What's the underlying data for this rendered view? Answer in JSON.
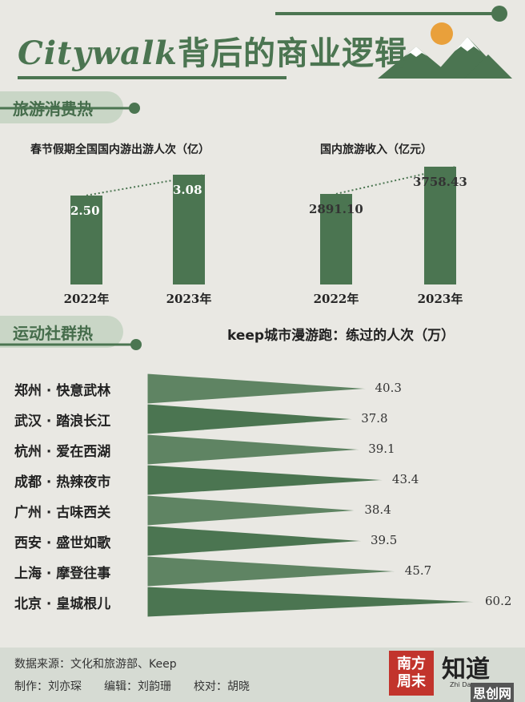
{
  "header": {
    "title_latin": "Citywalk",
    "title_cn": "背后的商业逻辑"
  },
  "tourism": {
    "section_title": "旅游消费热",
    "left_chart": {
      "caption": "春节假期全国国内游出游人次（亿）"
    },
    "right_chart": {
      "caption": "国内旅游收入（亿元）"
    }
  },
  "community": {
    "section_title": "运动社群热",
    "chart_caption": "keep城市漫游跑：练过的人次（万）"
  },
  "chart_data": [
    {
      "type": "bar",
      "title": "春节假期全国国内游出游人次（亿）",
      "categories": [
        "2022年",
        "2023年"
      ],
      "values": [
        2.5,
        3.08
      ],
      "value_labels": [
        "2.50",
        "3.08"
      ]
    },
    {
      "type": "bar",
      "title": "国内旅游收入（亿元）",
      "categories": [
        "2022年",
        "2023年"
      ],
      "values": [
        2891.1,
        3758.43
      ],
      "value_labels": [
        "2891.10",
        "3758.43"
      ]
    },
    {
      "type": "bar",
      "orientation": "horizontal",
      "title": "keep城市漫游跑：练过的人次（万）",
      "categories": [
        "郑州 · 快意武林",
        "武汉 · 踏浪长江",
        "杭州 · 爱在西湖",
        "成都 · 热辣夜市",
        "广州 · 古味西关",
        "西安 · 盛世如歌",
        "上海 · 摩登往事",
        "北京 · 皇城根儿"
      ],
      "values": [
        40.3,
        37.8,
        39.1,
        43.4,
        38.4,
        39.5,
        45.7,
        60.2
      ],
      "value_labels": [
        "40.3",
        "37.8",
        "39.1",
        "43.4",
        "38.4",
        "39.5",
        "45.7",
        "60.2"
      ]
    }
  ],
  "footer": {
    "source": "数据来源：文化和旅游部、Keep",
    "credits": "制作：刘亦琛　　编辑：刘韵珊　　校对：胡晓",
    "logo_text": "南方周末",
    "logo2_text": "知道",
    "logo2_sub": "Zhi Dao",
    "watermark": "思创网"
  },
  "colors": {
    "background": "#e9e8e3",
    "accent_green": "#4b7551",
    "tab_green": "#c9d6c6",
    "sun": "#e9a03b",
    "logo_red": "#c2342c"
  }
}
